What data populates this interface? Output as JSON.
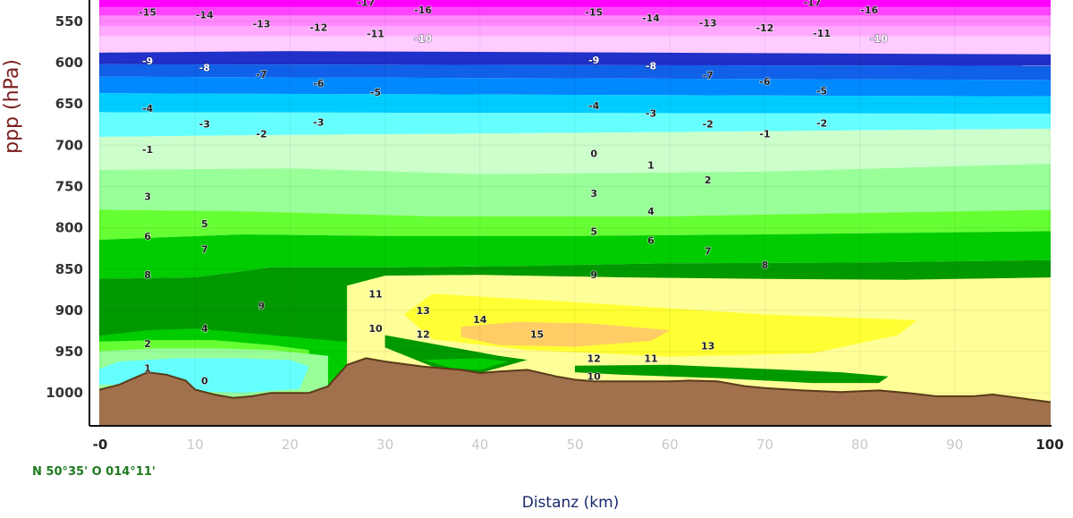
{
  "chart_data": {
    "type": "heatmap",
    "title": "",
    "xlabel": "Distanz (km)",
    "ylabel": "ppp (hPa)",
    "location": "N 50°35' O 014°11'",
    "xlim": [
      0,
      100
    ],
    "ylim_hPa": [
      1040,
      525
    ],
    "x_ticks": [
      "-0",
      "10",
      "20",
      "30",
      "40",
      "50",
      "60",
      "70",
      "80",
      "90",
      "100"
    ],
    "y_ticks": [
      "550",
      "600",
      "650",
      "700",
      "750",
      "800",
      "850",
      "900",
      "950",
      "1000"
    ],
    "grid": true,
    "terrain_color": "#a0714c",
    "terrain_pressure_hPa": [
      [
        0,
        996
      ],
      [
        2,
        990
      ],
      [
        4,
        980
      ],
      [
        5,
        975
      ],
      [
        7,
        978
      ],
      [
        9,
        985
      ],
      [
        10,
        996
      ],
      [
        12,
        1002
      ],
      [
        14,
        1006
      ],
      [
        16,
        1004
      ],
      [
        18,
        1000
      ],
      [
        20,
        1000
      ],
      [
        22,
        1000
      ],
      [
        24,
        992
      ],
      [
        26,
        966
      ],
      [
        28,
        958
      ],
      [
        30,
        962
      ],
      [
        34,
        968
      ],
      [
        38,
        972
      ],
      [
        40,
        976
      ],
      [
        42,
        974
      ],
      [
        45,
        972
      ],
      [
        48,
        980
      ],
      [
        50,
        984
      ],
      [
        52,
        986
      ],
      [
        56,
        986
      ],
      [
        60,
        986
      ],
      [
        62,
        985
      ],
      [
        65,
        986
      ],
      [
        68,
        992
      ],
      [
        70,
        994
      ],
      [
        74,
        997
      ],
      [
        78,
        999
      ],
      [
        82,
        997
      ],
      [
        85,
        1000
      ],
      [
        88,
        1004
      ],
      [
        92,
        1004
      ],
      [
        94,
        1002
      ],
      [
        96,
        1005
      ],
      [
        98,
        1008
      ],
      [
        100,
        1011
      ]
    ],
    "temperature_bands_degC": [
      {
        "range": "< -15",
        "color": "#ff00ff"
      },
      {
        "range": "-15 to -14",
        "color": "#ff44ff"
      },
      {
        "range": "-14 to -13",
        "color": "#ff88ff"
      },
      {
        "range": "-13 to -12",
        "color": "#ffaaff"
      },
      {
        "range": "-12 to -10",
        "color": "#ffccff"
      },
      {
        "range": "-10 to -8",
        "color": "#2030c8"
      },
      {
        "range": "-8 to -7",
        "color": "#1060e8"
      },
      {
        "range": "-7 to -5",
        "color": "#0088ff"
      },
      {
        "range": "-5 to -3",
        "color": "#00ccff"
      },
      {
        "range": "-3 to -1",
        "color": "#66ffff"
      },
      {
        "range": "-1 to 1",
        "color": "#ccffcc"
      },
      {
        "range": "1 to 4",
        "color": "#99ff99"
      },
      {
        "range": "4 to 6",
        "color": "#66ff33"
      },
      {
        "range": "6 to 8",
        "color": "#00cc00"
      },
      {
        "range": "8 to 10",
        "color": "#009900"
      },
      {
        "range": "10 to 12",
        "color": "#ffff99"
      },
      {
        "range": "12 to 14",
        "color": "#ffff33"
      },
      {
        "range": "14 to 16",
        "color": "#ffcc66"
      },
      {
        "range": "-1 to 1 (surface pocket)",
        "color": "#66ffff"
      }
    ],
    "isotherm_labels": [
      {
        "text": "-15",
        "x": 5,
        "p": 539
      },
      {
        "text": "-14",
        "x": 11,
        "p": 542
      },
      {
        "text": "-13",
        "x": 17,
        "p": 553
      },
      {
        "text": "-12",
        "x": 23,
        "p": 557
      },
      {
        "text": "-11",
        "x": 29,
        "p": 565
      },
      {
        "text": "-10",
        "x": 34,
        "p": 571
      },
      {
        "text": "-17",
        "x": 28,
        "p": 527
      },
      {
        "text": "-16",
        "x": 34,
        "p": 536
      },
      {
        "text": "-15",
        "x": 52,
        "p": 539
      },
      {
        "text": "-14",
        "x": 58,
        "p": 546
      },
      {
        "text": "-13",
        "x": 64,
        "p": 552
      },
      {
        "text": "-12",
        "x": 70,
        "p": 558
      },
      {
        "text": "-11",
        "x": 76,
        "p": 564
      },
      {
        "text": "-10",
        "x": 82,
        "p": 571
      },
      {
        "text": "-17",
        "x": 75,
        "p": 527
      },
      {
        "text": "-16",
        "x": 81,
        "p": 536
      },
      {
        "text": "-9",
        "x": 5,
        "p": 598
      },
      {
        "text": "-8",
        "x": 11,
        "p": 606
      },
      {
        "text": "-7",
        "x": 17,
        "p": 614
      },
      {
        "text": "-6",
        "x": 23,
        "p": 625
      },
      {
        "text": "-5",
        "x": 29,
        "p": 636
      },
      {
        "text": "-4",
        "x": 5,
        "p": 655
      },
      {
        "text": "-3",
        "x": 11,
        "p": 674
      },
      {
        "text": "-2",
        "x": 17,
        "p": 686
      },
      {
        "text": "-3",
        "x": 23,
        "p": 672
      },
      {
        "text": "-1",
        "x": 5,
        "p": 705
      },
      {
        "text": "-9",
        "x": 52,
        "p": 597
      },
      {
        "text": "-8",
        "x": 58,
        "p": 604
      },
      {
        "text": "-7",
        "x": 64,
        "p": 615
      },
      {
        "text": "-6",
        "x": 70,
        "p": 623
      },
      {
        "text": "-5",
        "x": 76,
        "p": 634
      },
      {
        "text": "-4",
        "x": 52,
        "p": 652
      },
      {
        "text": "-3",
        "x": 58,
        "p": 661
      },
      {
        "text": "-2",
        "x": 64,
        "p": 674
      },
      {
        "text": "-1",
        "x": 70,
        "p": 686
      },
      {
        "text": "-2",
        "x": 76,
        "p": 673
      },
      {
        "text": "0",
        "x": 52,
        "p": 710
      },
      {
        "text": "1",
        "x": 58,
        "p": 724
      },
      {
        "text": "2",
        "x": 64,
        "p": 742
      },
      {
        "text": "3",
        "x": 5,
        "p": 762
      },
      {
        "text": "3",
        "x": 52,
        "p": 758
      },
      {
        "text": "4",
        "x": 58,
        "p": 780
      },
      {
        "text": "5",
        "x": 11,
        "p": 795
      },
      {
        "text": "5",
        "x": 52,
        "p": 804
      },
      {
        "text": "6",
        "x": 5,
        "p": 810
      },
      {
        "text": "6",
        "x": 58,
        "p": 815
      },
      {
        "text": "7",
        "x": 11,
        "p": 826
      },
      {
        "text": "7",
        "x": 64,
        "p": 828
      },
      {
        "text": "8",
        "x": 5,
        "p": 857
      },
      {
        "text": "8",
        "x": 70,
        "p": 845
      },
      {
        "text": "9",
        "x": 52,
        "p": 857
      },
      {
        "text": "9",
        "x": 17,
        "p": 894
      },
      {
        "text": "11",
        "x": 29,
        "p": 880
      },
      {
        "text": "13",
        "x": 34,
        "p": 900
      },
      {
        "text": "14",
        "x": 40,
        "p": 911
      },
      {
        "text": "15",
        "x": 46,
        "p": 929
      },
      {
        "text": "13",
        "x": 64,
        "p": 943
      },
      {
        "text": "10",
        "x": 29,
        "p": 922
      },
      {
        "text": "12",
        "x": 34,
        "p": 929
      },
      {
        "text": "12",
        "x": 52,
        "p": 958
      },
      {
        "text": "11",
        "x": 58,
        "p": 958
      },
      {
        "text": "10",
        "x": 52,
        "p": 980
      },
      {
        "text": "4",
        "x": 11,
        "p": 922
      },
      {
        "text": "2",
        "x": 5,
        "p": 940
      },
      {
        "text": "1",
        "x": 5,
        "p": 970
      },
      {
        "text": "0",
        "x": 11,
        "p": 985
      }
    ]
  }
}
